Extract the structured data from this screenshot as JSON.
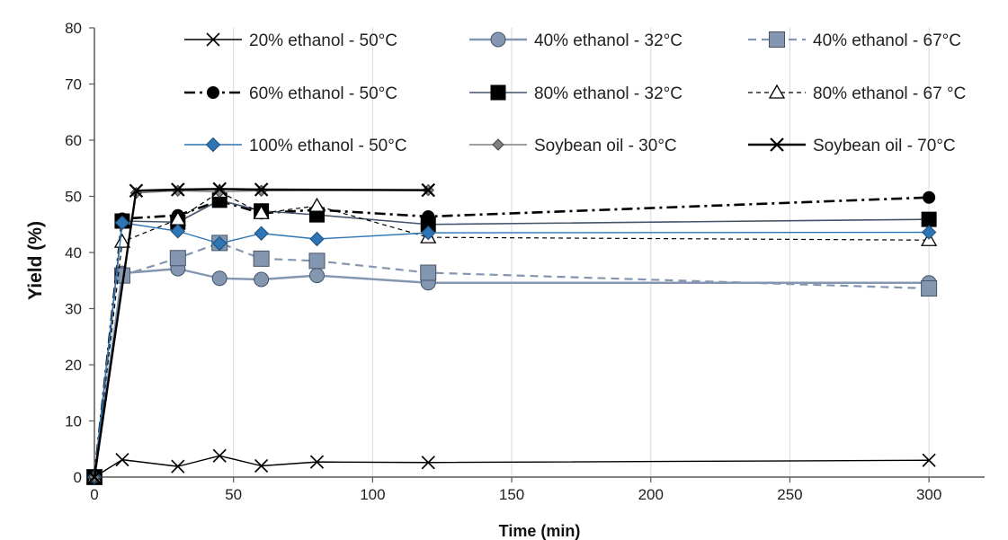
{
  "chart_data": {
    "type": "line",
    "title": "",
    "xlabel": "Time (min)",
    "ylabel": "Yield (%)",
    "xlim": [
      0,
      320
    ],
    "ylim": [
      0,
      80
    ],
    "xticks": [
      0,
      50,
      100,
      150,
      200,
      250,
      300
    ],
    "yticks": [
      0,
      10,
      20,
      30,
      40,
      50,
      60,
      70,
      80
    ],
    "grid": "vertical",
    "legend": "top",
    "series": [
      {
        "name": "20% ethanol - 50°C",
        "color": "#000000",
        "marker": "x",
        "line": "solid",
        "x": [
          0,
          10,
          30,
          45,
          60,
          80,
          120,
          300
        ],
        "y": [
          0,
          3.1,
          1.9,
          3.8,
          2.0,
          2.7,
          2.6,
          3.0
        ]
      },
      {
        "name": "40% ethanol - 32°C",
        "color": "#8496b0",
        "marker": "circle",
        "line": "solid",
        "x": [
          0,
          10,
          30,
          45,
          60,
          80,
          120,
          300
        ],
        "y": [
          0,
          36.3,
          37.1,
          35.4,
          35.2,
          35.9,
          34.6,
          34.6
        ]
      },
      {
        "name": "40% ethanol - 67°C",
        "color": "#8496b0",
        "marker": "square",
        "line": "dashed",
        "x": [
          0,
          10,
          30,
          45,
          60,
          80,
          120,
          300
        ],
        "y": [
          0,
          35.9,
          39.0,
          41.7,
          38.9,
          38.5,
          36.4,
          33.6
        ]
      },
      {
        "name": "60% ethanol - 50°C",
        "color": "#000000",
        "marker": "circle",
        "line": "dashdot",
        "x": [
          0,
          10,
          30,
          45,
          60,
          80,
          120,
          300
        ],
        "y": [
          0,
          46.0,
          46.6,
          49.2,
          47.0,
          47.6,
          46.4,
          49.8
        ]
      },
      {
        "name": "80% ethanol - 32°C",
        "color": "#000000",
        "marker": "square",
        "line": "solid-gray",
        "x": [
          0,
          10,
          30,
          45,
          60,
          80,
          120,
          300
        ],
        "y": [
          0,
          45.6,
          45.4,
          49.3,
          47.4,
          46.7,
          45.0,
          45.9
        ]
      },
      {
        "name": "80% ethanol - 67 °C",
        "color": "#000000",
        "marker": "triangle",
        "line": "dashed-fine",
        "x": [
          0,
          10,
          30,
          45,
          60,
          80,
          120,
          300
        ],
        "y": [
          0,
          41.9,
          45.9,
          50.8,
          47.0,
          48.3,
          42.7,
          42.2
        ]
      },
      {
        "name": "100% ethanol - 50°C",
        "color": "#2e75b6",
        "marker": "diamond",
        "line": "solid",
        "x": [
          0,
          10,
          30,
          45,
          60,
          80,
          120,
          300
        ],
        "y": [
          0,
          45.3,
          43.8,
          41.6,
          43.4,
          42.4,
          43.5,
          43.6
        ]
      },
      {
        "name": "Soybean oil - 30°C",
        "color": "#808080",
        "marker": "diamond",
        "line": "solid",
        "x": [
          0,
          15,
          30,
          45,
          60,
          120
        ],
        "y": [
          0,
          50.6,
          51.0,
          50.8,
          51.0,
          51.1
        ]
      },
      {
        "name": "Soybean oil - 70°C",
        "color": "#000000",
        "marker": "x",
        "line": "solid-bold",
        "x": [
          0,
          15,
          30,
          45,
          60,
          120
        ],
        "y": [
          0,
          51.0,
          51.2,
          51.3,
          51.2,
          51.1
        ]
      }
    ]
  }
}
